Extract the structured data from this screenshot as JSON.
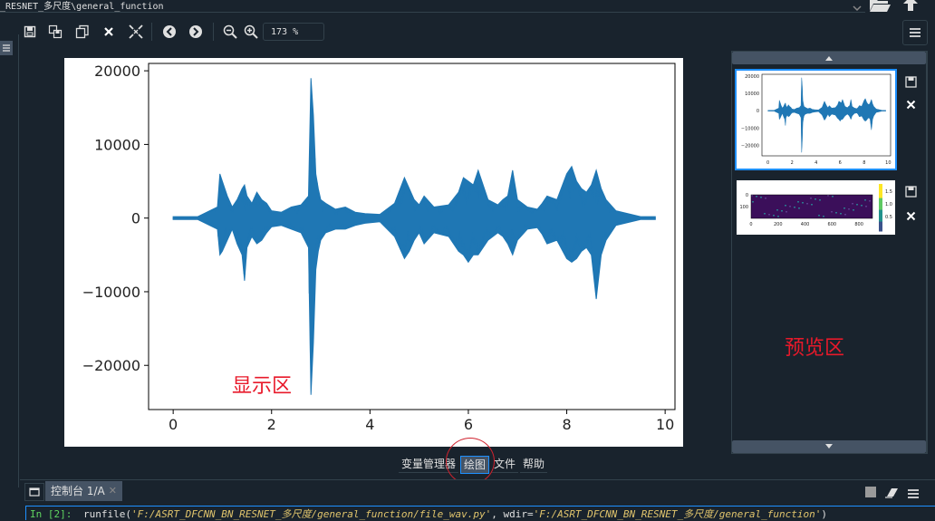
{
  "window": {
    "path": "_RESNET_多尺度\\general_function"
  },
  "toolbar": {
    "items": [
      "save-icon",
      "save-all-icon",
      "copy-icon",
      "close-icon",
      "close-all-icon",
      "back-icon",
      "forward-icon",
      "zoom-out-icon",
      "zoom-in-icon"
    ],
    "zoom_value": "173 %"
  },
  "plot": {
    "annotation": "显示区"
  },
  "preview": {
    "annotation": "预览区"
  },
  "tabs": [
    {
      "label": "变量管理器"
    },
    {
      "label": "绘图"
    },
    {
      "label": "文件"
    },
    {
      "label": "帮助"
    }
  ],
  "console": {
    "tab_label": "控制台 1/A",
    "prompt": "In [2]:",
    "command": "runfile(",
    "arg1": "'F:/ASRT_DFCNN_BN_RESNET_多尺度/general_function/file_wav.py'",
    "sep": ", wdir=",
    "arg2": "'F:/ASRT_DFCNN_BN_RESNET_多尺度/general_function'",
    "close": ")"
  },
  "colors": {
    "accent": "#1e90ff",
    "annotation": "#e8192a",
    "line": "#1f77b4"
  },
  "chart_data": [
    {
      "type": "line",
      "title": "",
      "xlabel": "",
      "ylabel": "",
      "xlim": [
        -0.5,
        10.2
      ],
      "ylim": [
        -26000,
        21000
      ],
      "xticks": [
        "0",
        "2",
        "4",
        "6",
        "8",
        "10"
      ],
      "yticks": [
        "20000",
        "10000",
        "0",
        "−10000",
        "−20000"
      ],
      "series": [
        {
          "x": [
            0,
            0.5,
            0.9,
            0.95,
            1.0,
            1.1,
            1.2,
            1.3,
            1.4,
            1.45,
            1.5,
            1.6,
            1.7,
            1.8,
            1.9,
            2.0,
            2.2,
            2.4,
            2.6,
            2.75,
            2.8,
            2.85,
            2.9,
            2.95,
            3.0,
            3.1,
            3.3,
            3.5,
            3.7,
            3.9,
            4.2,
            4.5,
            4.7,
            4.8,
            4.9,
            5.0,
            5.1,
            5.3,
            5.6,
            5.8,
            5.9,
            6.0,
            6.1,
            6.2,
            6.4,
            6.6,
            6.7,
            6.8,
            6.9,
            7.0,
            7.2,
            7.4,
            7.5,
            7.6,
            7.8,
            8.0,
            8.1,
            8.2,
            8.3,
            8.4,
            8.5,
            8.6,
            8.7,
            8.8,
            9.0,
            9.5,
            9.8
          ],
          "upper": [
            200,
            200,
            1500,
            6000,
            5000,
            3000,
            1500,
            2500,
            4000,
            4500,
            3000,
            2000,
            3500,
            2500,
            2000,
            1000,
            800,
            1500,
            1800,
            3000,
            19000,
            14000,
            6000,
            4000,
            2500,
            2000,
            1200,
            1500,
            800,
            600,
            500,
            2000,
            5500,
            4000,
            2500,
            1800,
            3000,
            1500,
            1800,
            3500,
            5500,
            5000,
            4500,
            6500,
            2500,
            1800,
            2500,
            3000,
            6500,
            2500,
            1500,
            1200,
            2000,
            3000,
            2500,
            6000,
            7000,
            5000,
            4000,
            3500,
            4500,
            6500,
            4000,
            2500,
            1000,
            200,
            200
          ],
          "lower": [
            -200,
            -200,
            -1500,
            -5000,
            -4500,
            -3000,
            -1500,
            -3500,
            -5000,
            -8500,
            -4000,
            -2500,
            -3500,
            -3000,
            -2000,
            -1200,
            -1000,
            -1500,
            -2000,
            -4000,
            -24000,
            -17000,
            -7000,
            -4500,
            -3000,
            -2000,
            -1500,
            -1500,
            -1000,
            -700,
            -500,
            -2500,
            -5500,
            -4500,
            -3000,
            -2000,
            -3500,
            -2000,
            -2500,
            -4500,
            -5000,
            -6000,
            -5000,
            -5000,
            -3000,
            -2000,
            -2500,
            -3500,
            -5000,
            -3000,
            -1500,
            -1300,
            -2200,
            -3500,
            -3000,
            -5500,
            -6000,
            -5500,
            -4500,
            -4000,
            -5000,
            -11000,
            -5000,
            -3000,
            -1000,
            -200,
            -200
          ]
        }
      ]
    },
    {
      "type": "line",
      "title": "",
      "xticks": [
        "0",
        "2",
        "4",
        "6",
        "8",
        "10"
      ],
      "yticks": [
        "20000",
        "10000",
        "0",
        "−10000",
        "−20000"
      ]
    },
    {
      "type": "heatmap",
      "title": "",
      "xticks": [
        "0",
        "200",
        "400",
        "600",
        "800"
      ],
      "yticks": [
        "0",
        "100"
      ],
      "colorbar_ticks": [
        "1.5",
        "1.0",
        "0.5"
      ]
    }
  ]
}
